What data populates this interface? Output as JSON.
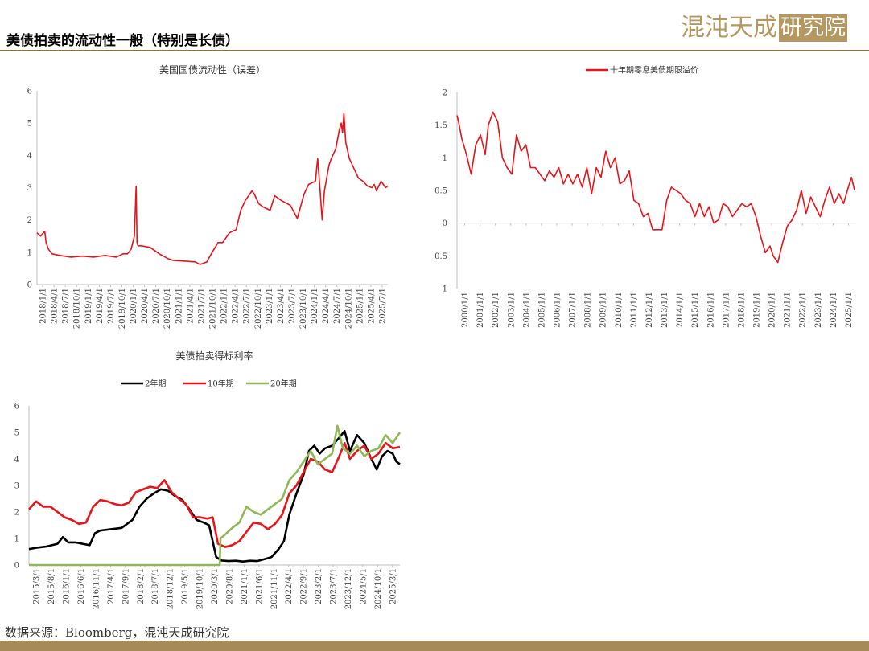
{
  "header": {
    "title": "美债拍卖的流动性一般（特别是长债）"
  },
  "logo": {
    "text_a": "混沌天成",
    "text_b": "研究院"
  },
  "footer": {
    "source": "数据来源：Bloomberg，混沌天成研究院"
  },
  "colors": {
    "red": "#e8141a",
    "black": "#000000",
    "green": "#8fb857",
    "axis": "#bfbfbf",
    "brand": "#b5985f"
  },
  "chart_data": [
    {
      "id": "liquidity",
      "type": "line",
      "title": "美国国债流动性（误差）",
      "xlabel": "",
      "ylabel": "",
      "ylim": [
        0,
        6
      ],
      "yticks": [
        "0",
        "1",
        "2",
        "3",
        "4",
        "5",
        "6"
      ],
      "xticks": [
        "2018/1/1",
        "2018/4/1",
        "2018/7/1",
        "2018/10/1",
        "2019/1/1",
        "2019/4/1",
        "2019/7/1",
        "2019/10/1",
        "2020/1/1",
        "2020/4/1",
        "2020/7/1",
        "2020/10/1",
        "2021/1/1",
        "2021/4/1",
        "2021/7/1",
        "2021/10/1",
        "2022/1/1",
        "2022/4/1",
        "2022/7/1",
        "2022/10/1",
        "2023/1/1",
        "2023/4/1",
        "2023/7/1",
        "2023/10/1",
        "2024/1/1",
        "2024/4/1",
        "2024/7/1",
        "2024/10/1",
        "2025/1/1",
        "2025/4/1",
        "2025/7/1"
      ],
      "x_range": [
        2018.0,
        2025.75
      ],
      "series": [
        {
          "color": "red",
          "x": [
            2018.0,
            2018.08,
            2018.17,
            2018.2,
            2018.25,
            2018.33,
            2018.5,
            2018.75,
            2019.0,
            2019.25,
            2019.5,
            2019.75,
            2019.9,
            2020.0,
            2020.08,
            2020.15,
            2020.19,
            2020.21,
            2020.23,
            2020.3,
            2020.5,
            2020.7,
            2020.9,
            2021.0,
            2021.3,
            2021.5,
            2021.6,
            2021.75,
            2021.85,
            2022.0,
            2022.1,
            2022.25,
            2022.4,
            2022.5,
            2022.6,
            2022.75,
            2022.8,
            2022.9,
            2023.0,
            2023.15,
            2023.25,
            2023.4,
            2023.6,
            2023.75,
            2023.8,
            2023.9,
            2024.0,
            2024.15,
            2024.2,
            2024.25,
            2024.3,
            2024.35,
            2024.45,
            2024.5,
            2024.6,
            2024.68,
            2024.72,
            2024.75,
            2024.78,
            2024.82,
            2024.9,
            2025.0,
            2025.1,
            2025.2,
            2025.3,
            2025.4,
            2025.45,
            2025.5,
            2025.55,
            2025.6,
            2025.7,
            2025.75
          ],
          "y": [
            1.6,
            1.5,
            1.65,
            1.3,
            1.1,
            0.95,
            0.9,
            0.85,
            0.88,
            0.85,
            0.9,
            0.85,
            0.95,
            0.95,
            1.1,
            1.5,
            3.05,
            1.3,
            1.2,
            1.2,
            1.15,
            0.95,
            0.8,
            0.75,
            0.72,
            0.7,
            0.62,
            0.7,
            0.95,
            1.3,
            1.3,
            1.6,
            1.7,
            2.3,
            2.6,
            2.9,
            2.8,
            2.5,
            2.4,
            2.3,
            2.75,
            2.6,
            2.45,
            2.05,
            2.3,
            2.8,
            3.1,
            3.2,
            3.9,
            3.0,
            2.0,
            2.9,
            3.7,
            3.9,
            4.2,
            4.8,
            5.0,
            4.7,
            5.3,
            4.4,
            3.9,
            3.6,
            3.3,
            3.2,
            3.05,
            3.0,
            3.1,
            2.9,
            3.05,
            3.2,
            3.0,
            3.05
          ]
        }
      ]
    },
    {
      "id": "zero_coupon",
      "type": "line",
      "title": "",
      "legend": [
        {
          "name": "十年期零息美债期限溢价",
          "color": "red"
        }
      ],
      "ylim": [
        -1,
        2
      ],
      "yticks": [
        "-1",
        "-0.5",
        "0",
        "0.5",
        "1",
        "1.5",
        "2"
      ],
      "xticks": [
        "2000/1/1",
        "2001/1/1",
        "2002/1/1",
        "2003/1/1",
        "2004/1/1",
        "2005/1/1",
        "2006/1/1",
        "2007/1/1",
        "2008/1/1",
        "2009/1/1",
        "2010/1/1",
        "2011/1/1",
        "2012/1/1",
        "2013/1/1",
        "2014/1/1",
        "2015/1/1",
        "2016/1/1",
        "2017/1/1",
        "2018/1/1",
        "2019/1/1",
        "2020/1/1",
        "2021/1/1",
        "2022/1/1",
        "2023/1/1",
        "2024/1/1",
        "2025/1/1"
      ],
      "x_range": [
        2000.0,
        2025.5
      ],
      "series": [
        {
          "name": "十年期零息美债期限溢价",
          "color": "red",
          "x": [
            2000.0,
            2000.1,
            2000.3,
            2000.6,
            2000.9,
            2001.2,
            2001.5,
            2001.8,
            2002.0,
            2002.3,
            2002.6,
            2002.9,
            2003.2,
            2003.5,
            2003.8,
            2004.1,
            2004.4,
            2004.7,
            2005.0,
            2005.3,
            2005.6,
            2005.9,
            2006.2,
            2006.5,
            2006.8,
            2007.1,
            2007.4,
            2007.7,
            2008.0,
            2008.3,
            2008.6,
            2008.9,
            2009.2,
            2009.5,
            2009.8,
            2010.1,
            2010.4,
            2010.7,
            2011.0,
            2011.3,
            2011.6,
            2011.9,
            2012.2,
            2012.5,
            2012.8,
            2013.1,
            2013.4,
            2013.7,
            2014.0,
            2014.3,
            2014.6,
            2014.9,
            2015.2,
            2015.5,
            2015.8,
            2016.1,
            2016.4,
            2016.7,
            2017.0,
            2017.3,
            2017.6,
            2017.9,
            2018.2,
            2018.5,
            2018.8,
            2019.1,
            2019.4,
            2019.7,
            2020.0,
            2020.2,
            2020.5,
            2020.8,
            2021.1,
            2021.4,
            2021.7,
            2022.0,
            2022.3,
            2022.6,
            2022.9,
            2023.2,
            2023.5,
            2023.8,
            2024.1,
            2024.4,
            2024.7,
            2025.0,
            2025.2,
            2025.4
          ],
          "y": [
            1.65,
            1.55,
            1.3,
            1.05,
            0.75,
            1.2,
            1.35,
            1.05,
            1.5,
            1.7,
            1.55,
            1.0,
            0.85,
            0.75,
            1.35,
            1.1,
            1.2,
            0.85,
            0.85,
            0.75,
            0.65,
            0.8,
            0.7,
            0.85,
            0.6,
            0.75,
            0.6,
            0.75,
            0.55,
            0.85,
            0.45,
            0.85,
            0.7,
            1.1,
            0.85,
            1.0,
            0.6,
            0.65,
            0.8,
            0.35,
            0.3,
            0.1,
            0.15,
            -0.1,
            -0.1,
            -0.1,
            0.35,
            0.55,
            0.5,
            0.45,
            0.35,
            0.3,
            0.1,
            0.3,
            0.1,
            0.25,
            0.0,
            0.05,
            0.3,
            0.25,
            0.1,
            0.2,
            0.3,
            0.25,
            0.3,
            0.1,
            -0.2,
            -0.45,
            -0.35,
            -0.5,
            -0.6,
            -0.3,
            -0.05,
            0.05,
            0.2,
            0.5,
            0.15,
            0.4,
            0.25,
            0.1,
            0.35,
            0.55,
            0.3,
            0.45,
            0.3,
            0.55,
            0.7,
            0.5
          ]
        }
      ]
    },
    {
      "id": "auction_rate",
      "type": "line",
      "title": "美债拍卖得标利率",
      "legend": [
        {
          "name": "2年期",
          "color": "black"
        },
        {
          "name": "10年期",
          "color": "red"
        },
        {
          "name": "20年期",
          "color": "green"
        }
      ],
      "ylim": [
        0,
        6
      ],
      "yticks": [
        "0",
        "1",
        "2",
        "3",
        "4",
        "5",
        "6"
      ],
      "xticks": [
        "2015/3/1",
        "2015/8/1",
        "2016/1/1",
        "2016/6/1",
        "2016/11/1",
        "2017/4/1",
        "2017/9/1",
        "2018/2/1",
        "2018/7/1",
        "2018/12/1",
        "2019/5/1",
        "2019/10/1",
        "2020/3/1",
        "2020/8/1",
        "2021/1/1",
        "2021/6/1",
        "2021/11/1",
        "2022/4/1",
        "2022/9/1",
        "2023/2/1",
        "2023/7/1",
        "2023/12/1",
        "2024/5/1",
        "2024/10/1",
        "2025/3/1"
      ],
      "x_range": [
        2015.0,
        2025.4
      ],
      "series": [
        {
          "name": "2年期",
          "color": "black",
          "x": [
            2015.0,
            2015.2,
            2015.5,
            2015.8,
            2015.95,
            2016.1,
            2016.3,
            2016.5,
            2016.7,
            2016.85,
            2017.0,
            2017.3,
            2017.6,
            2017.9,
            2018.1,
            2018.3,
            2018.5,
            2018.7,
            2018.9,
            2019.1,
            2019.3,
            2019.5,
            2019.7,
            2019.9,
            2020.05,
            2020.15,
            2020.25,
            2020.4,
            2020.6,
            2020.8,
            2021.0,
            2021.2,
            2021.4,
            2021.6,
            2021.8,
            2022.0,
            2022.15,
            2022.3,
            2022.5,
            2022.7,
            2022.85,
            2023.0,
            2023.15,
            2023.3,
            2023.5,
            2023.7,
            2023.85,
            2024.0,
            2024.2,
            2024.4,
            2024.6,
            2024.75,
            2024.9,
            2025.05,
            2025.2,
            2025.3,
            2025.4
          ],
          "y": [
            0.6,
            0.65,
            0.7,
            0.8,
            1.05,
            0.85,
            0.85,
            0.8,
            0.75,
            1.2,
            1.3,
            1.35,
            1.4,
            1.7,
            2.2,
            2.5,
            2.7,
            2.85,
            2.8,
            2.6,
            2.45,
            2.1,
            1.7,
            1.6,
            1.5,
            0.9,
            0.3,
            0.17,
            0.15,
            0.16,
            0.13,
            0.16,
            0.15,
            0.22,
            0.3,
            0.6,
            0.9,
            1.9,
            2.7,
            3.4,
            4.3,
            4.5,
            4.2,
            4.4,
            4.5,
            4.8,
            5.05,
            4.3,
            4.9,
            4.6,
            4.0,
            3.6,
            4.1,
            4.3,
            4.2,
            3.9,
            3.8
          ]
        },
        {
          "name": "10年期",
          "color": "red",
          "x": [
            2015.0,
            2015.2,
            2015.4,
            2015.6,
            2015.8,
            2016.0,
            2016.2,
            2016.4,
            2016.6,
            2016.8,
            2017.0,
            2017.2,
            2017.4,
            2017.6,
            2017.8,
            2018.0,
            2018.2,
            2018.4,
            2018.6,
            2018.8,
            2019.0,
            2019.2,
            2019.4,
            2019.6,
            2019.8,
            2020.0,
            2020.15,
            2020.3,
            2020.5,
            2020.7,
            2020.9,
            2021.1,
            2021.3,
            2021.5,
            2021.7,
            2021.9,
            2022.1,
            2022.3,
            2022.5,
            2022.7,
            2022.9,
            2023.1,
            2023.3,
            2023.5,
            2023.7,
            2023.85,
            2024.0,
            2024.2,
            2024.4,
            2024.6,
            2024.8,
            2025.0,
            2025.2,
            2025.4
          ],
          "y": [
            2.1,
            2.4,
            2.2,
            2.2,
            2.0,
            1.8,
            1.7,
            1.55,
            1.6,
            2.2,
            2.45,
            2.4,
            2.3,
            2.25,
            2.35,
            2.75,
            2.85,
            2.95,
            2.9,
            3.2,
            2.75,
            2.5,
            2.3,
            1.8,
            1.8,
            1.75,
            1.8,
            0.8,
            0.68,
            0.75,
            0.9,
            1.25,
            1.6,
            1.55,
            1.35,
            1.55,
            1.9,
            2.7,
            3.0,
            3.5,
            4.0,
            3.9,
            3.6,
            3.5,
            4.1,
            4.6,
            4.0,
            4.3,
            4.5,
            4.0,
            4.2,
            4.6,
            4.4,
            4.45
          ]
        },
        {
          "name": "20年期",
          "color": "green",
          "x": [
            2015.0,
            2016.0,
            2017.0,
            2018.0,
            2019.0,
            2020.0,
            2020.35,
            2020.37,
            2020.5,
            2020.7,
            2020.9,
            2021.1,
            2021.3,
            2021.5,
            2021.7,
            2021.9,
            2022.1,
            2022.3,
            2022.5,
            2022.7,
            2022.9,
            2023.1,
            2023.3,
            2023.5,
            2023.65,
            2023.8,
            2024.0,
            2024.2,
            2024.4,
            2024.6,
            2024.8,
            2025.0,
            2025.2,
            2025.4
          ],
          "y": [
            0,
            0,
            0,
            0,
            0,
            0,
            0,
            1.0,
            1.15,
            1.4,
            1.6,
            2.2,
            2.0,
            1.9,
            2.1,
            2.3,
            2.5,
            3.2,
            3.5,
            3.9,
            4.3,
            3.8,
            4.0,
            4.2,
            5.25,
            4.4,
            4.2,
            4.5,
            4.1,
            4.3,
            4.4,
            4.9,
            4.6,
            5.0
          ]
        }
      ]
    }
  ]
}
